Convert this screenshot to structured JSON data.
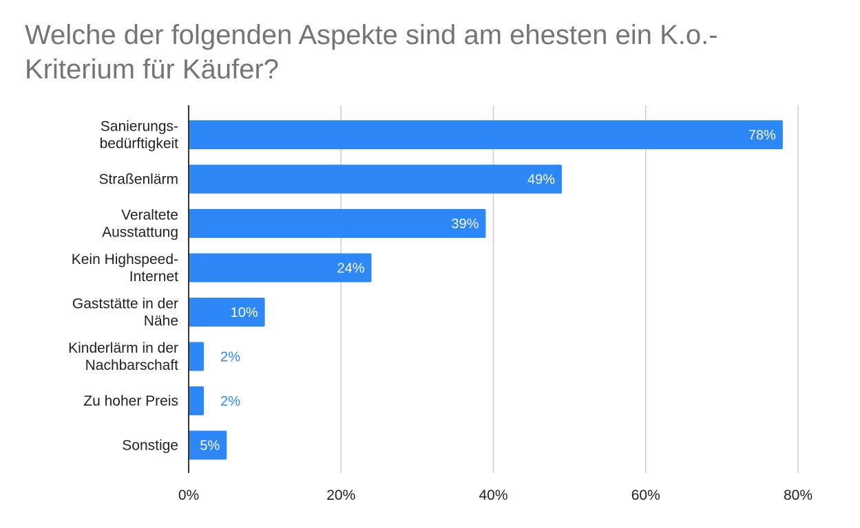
{
  "chart_data": {
    "type": "bar",
    "orientation": "horizontal",
    "title": "Welche der folgenden Aspekte sind am ehesten ein K.o.-Kriterium für Käufer?",
    "categories": [
      [
        "Sanierungs-",
        "bedürftigkeit"
      ],
      [
        "Straßenlärm"
      ],
      [
        "Veraltete",
        "Ausstattung"
      ],
      [
        "Kein Highspeed-",
        "Internet"
      ],
      [
        "Gaststätte in der",
        "Nähe"
      ],
      [
        "Kinderlärm in der",
        "Nachbarschaft"
      ],
      [
        "Zu hoher Preis"
      ],
      [
        "Sonstige"
      ]
    ],
    "values": [
      78,
      49,
      39,
      24,
      10,
      2,
      2,
      5
    ],
    "data_labels": [
      "78%",
      "49%",
      "39%",
      "24%",
      "10%",
      "2%",
      "2%",
      "5%"
    ],
    "xlim": [
      0,
      80
    ],
    "xticks": [
      0,
      20,
      40,
      60,
      80
    ],
    "xtick_labels": [
      "0%",
      "20%",
      "40%",
      "60%",
      "80%"
    ],
    "xlabel": "",
    "ylabel": "",
    "grid": true,
    "legend": "none",
    "colors": {
      "bar": "#2d87f7",
      "label_inside": "#ffffff",
      "label_outside": "#2d87f7",
      "grid": "#cccccc",
      "axis": "#333333",
      "title": "#757575"
    }
  }
}
